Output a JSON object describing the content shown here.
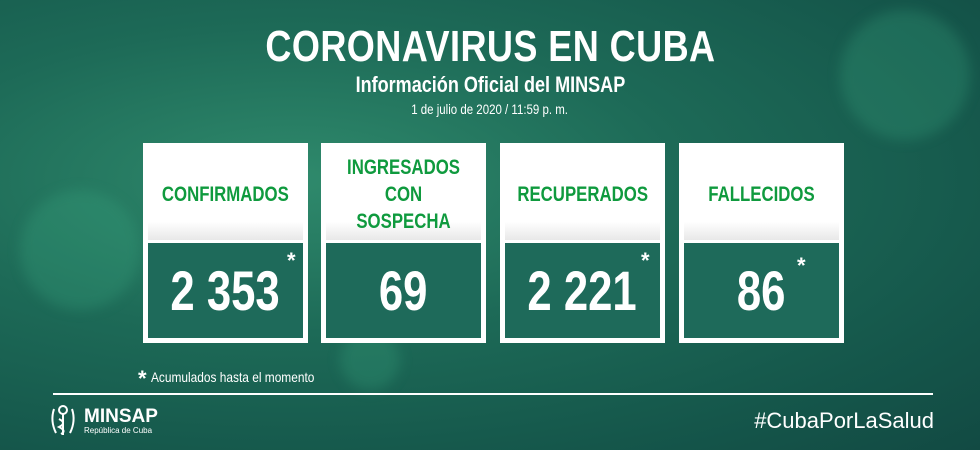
{
  "header": {
    "title": "CORONAVIRUS EN CUBA",
    "subtitle": "Información Oficial del MINSAP",
    "date": "1 de julio de 2020 / 11:59 p. m."
  },
  "cards": [
    {
      "label": "CONFIRMADOS",
      "value": "2 353",
      "asterisk": "*"
    },
    {
      "label": "INGRESADOS\nCON SOSPECHA",
      "value": "69",
      "asterisk": ""
    },
    {
      "label": "RECUPERADOS",
      "value": "2 221",
      "asterisk": "*"
    },
    {
      "label": "FALLECIDOS",
      "value": "86",
      "asterisk": "*"
    }
  ],
  "footnote": {
    "mark": "*",
    "text": "Acumulados hasta el momento"
  },
  "footer": {
    "logo_name": "MINSAP",
    "logo_sub": "República de Cuba",
    "hashtag": "#CubaPorLaSalud"
  },
  "colors": {
    "label_green": "#0f9a3e",
    "background": "#1d6a57"
  }
}
